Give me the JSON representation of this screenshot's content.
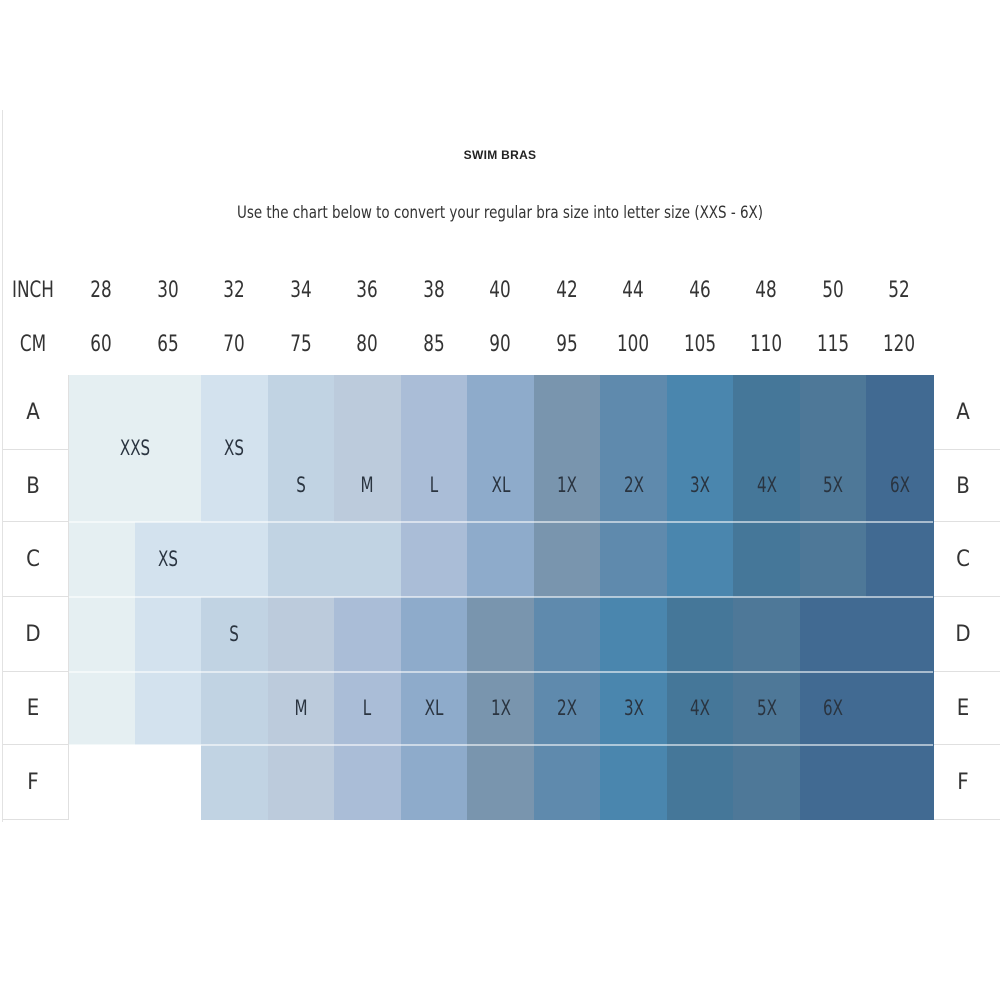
{
  "chart_data": {
    "type": "table",
    "title": "SWIM BRAS",
    "subtitle": "Use the chart below to convert your regular bra size into letter size (XXS - 6X)",
    "header_rows": [
      {
        "label": "INCH",
        "values": [
          "28",
          "30",
          "32",
          "34",
          "36",
          "38",
          "40",
          "42",
          "44",
          "46",
          "48",
          "50",
          "52"
        ]
      },
      {
        "label": "CM",
        "values": [
          "60",
          "65",
          "70",
          "75",
          "80",
          "85",
          "90",
          "95",
          "100",
          "105",
          "110",
          "115",
          "120"
        ]
      }
    ],
    "colors": {
      "XXS": "#e5eff2",
      "XS": "#d3e2ee",
      "S": "#c1d3e3",
      "M": "#bccbdc",
      "L": "#aabdd7",
      "XL": "#8eabcb",
      "1X": "#7995ae",
      "2X": "#5f8aad",
      "3X": "#4a86ae",
      "4X": "#457799",
      "5X": "#4e7898",
      "6X": "#416a92"
    },
    "rows": [
      {
        "cup": "A",
        "cells": [
          "XXS",
          "XXS",
          "XS",
          "S",
          "M",
          "L",
          "XL",
          "1X",
          "2X",
          "3X",
          "4X",
          "5X",
          "6X"
        ]
      },
      {
        "cup": "B",
        "cells": [
          "XXS",
          "XXS",
          "XS",
          "S",
          "M",
          "L",
          "XL",
          "1X",
          "2X",
          "3X",
          "4X",
          "5X",
          "6X"
        ]
      },
      {
        "cup": "C",
        "cells": [
          "XXS",
          "XS",
          "XS",
          "S",
          "S",
          "L",
          "XL",
          "1X",
          "2X",
          "3X",
          "4X",
          "5X",
          "6X"
        ]
      },
      {
        "cup": "D",
        "cells": [
          "XXS",
          "XS",
          "S",
          "M",
          "L",
          "XL",
          "1X",
          "2X",
          "3X",
          "4X",
          "5X",
          "6X",
          "6X"
        ]
      },
      {
        "cup": "E",
        "cells": [
          "XXS",
          "XS",
          "S",
          "M",
          "L",
          "XL",
          "1X",
          "2X",
          "3X",
          "4X",
          "5X",
          "6X",
          "6X"
        ]
      },
      {
        "cup": "F",
        "cells": [
          null,
          null,
          "S",
          "M",
          "L",
          "XL",
          "1X",
          "2X",
          "3X",
          "4X",
          "5X",
          "6X",
          "6X"
        ]
      }
    ],
    "labels": [
      {
        "rows": [
          "A",
          "B"
        ],
        "band": "28-30",
        "text": "XXS"
      },
      {
        "rows": [
          "A",
          "B"
        ],
        "band": "32",
        "text": "XS"
      },
      {
        "rows": [
          "B"
        ],
        "band": "34",
        "text": "S"
      },
      {
        "rows": [
          "B"
        ],
        "band": "36",
        "text": "M"
      },
      {
        "rows": [
          "B"
        ],
        "band": "38",
        "text": "L"
      },
      {
        "rows": [
          "B"
        ],
        "band": "40",
        "text": "XL"
      },
      {
        "rows": [
          "B"
        ],
        "band": "42",
        "text": "1X"
      },
      {
        "rows": [
          "B"
        ],
        "band": "44",
        "text": "2X"
      },
      {
        "rows": [
          "B"
        ],
        "band": "46",
        "text": "3X"
      },
      {
        "rows": [
          "B"
        ],
        "band": "48",
        "text": "4X"
      },
      {
        "rows": [
          "B"
        ],
        "band": "50",
        "text": "5X"
      },
      {
        "rows": [
          "B"
        ],
        "band": "52",
        "text": "6X"
      },
      {
        "rows": [
          "C"
        ],
        "band": "30",
        "text": "XS"
      },
      {
        "rows": [
          "D"
        ],
        "band": "32",
        "text": "S"
      },
      {
        "rows": [
          "E"
        ],
        "band": "34",
        "text": "M"
      },
      {
        "rows": [
          "E"
        ],
        "band": "36",
        "text": "L"
      },
      {
        "rows": [
          "E"
        ],
        "band": "38",
        "text": "XL"
      },
      {
        "rows": [
          "E"
        ],
        "band": "40",
        "text": "1X"
      },
      {
        "rows": [
          "E"
        ],
        "band": "42",
        "text": "2X"
      },
      {
        "rows": [
          "E"
        ],
        "band": "44",
        "text": "3X"
      },
      {
        "rows": [
          "E"
        ],
        "band": "46",
        "text": "4X"
      },
      {
        "rows": [
          "E"
        ],
        "band": "48",
        "text": "5X"
      },
      {
        "rows": [
          "E"
        ],
        "band": "50",
        "text": "6X"
      }
    ]
  }
}
